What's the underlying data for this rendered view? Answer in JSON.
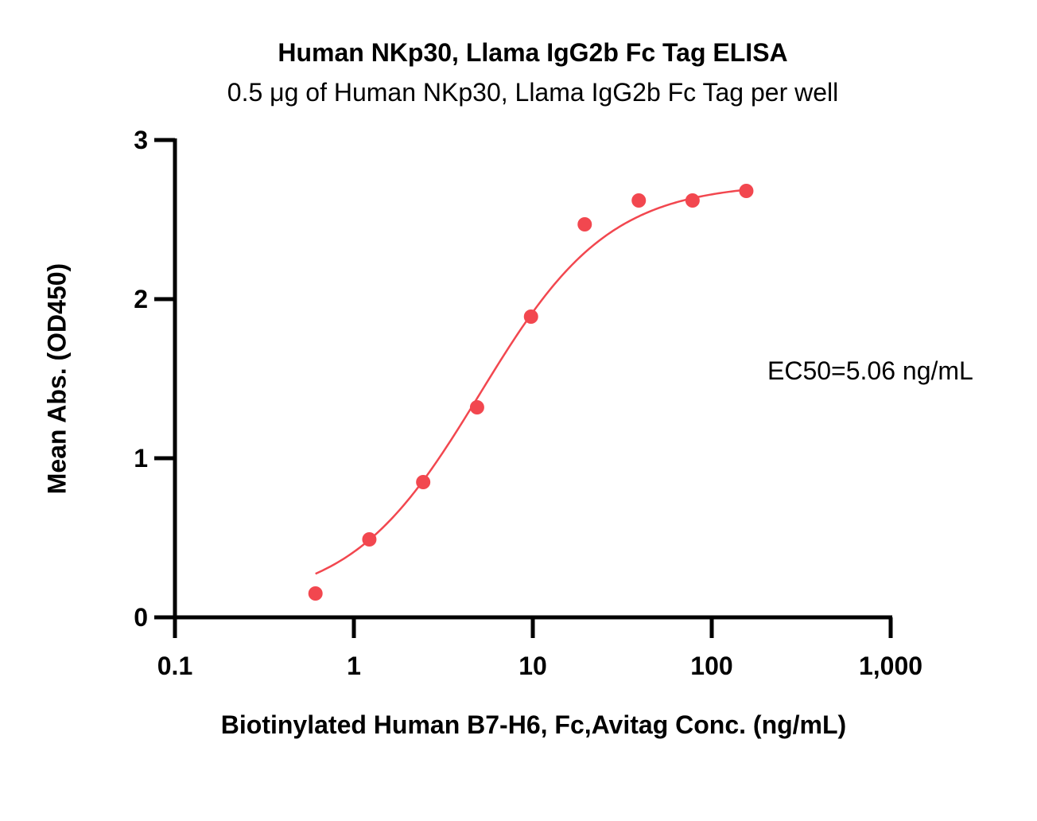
{
  "chart_data": {
    "type": "scatter",
    "title": "Human NKp30, Llama IgG2b Fc Tag ELISA",
    "subtitle": "0.5 μg of Human NKp30, Llama IgG2b Fc Tag per well",
    "xlabel": "Biotinylated Human B7-H6, Fc,Avitag Conc. (ng/mL)",
    "ylabel": "Mean Abs. (OD450)",
    "xscale": "log",
    "xlim": [
      0.1,
      1000
    ],
    "ylim": [
      0,
      3
    ],
    "x_ticks": [
      0.1,
      1,
      10,
      100,
      1000
    ],
    "x_tick_labels": [
      "0.1",
      "1",
      "10",
      "100",
      "1,000"
    ],
    "y_ticks": [
      0,
      1,
      2,
      3
    ],
    "y_tick_labels": [
      "0",
      "1",
      "2",
      "3"
    ],
    "annotation": "EC50=5.06 ng/mL",
    "color": "#f2474f",
    "grid": false,
    "series": [
      {
        "x": [
          0.61,
          1.22,
          2.44,
          4.88,
          9.77,
          19.5,
          39.1,
          78.1,
          156
        ],
        "y": [
          0.15,
          0.49,
          0.85,
          1.32,
          1.89,
          2.47,
          2.62,
          2.62,
          2.68
        ]
      }
    ],
    "fit": {
      "model": "4PL",
      "bottom": 0.08,
      "top": 2.73,
      "ec50": 5.06,
      "hill": 1.2,
      "x_range": [
        0.61,
        156
      ]
    }
  }
}
